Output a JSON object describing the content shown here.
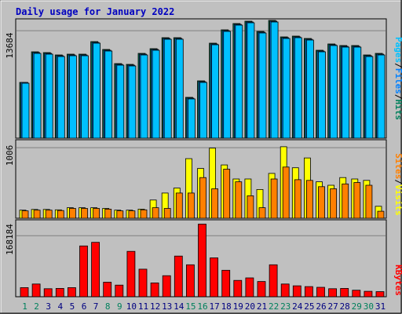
{
  "title": "Daily usage for January 2022",
  "colors": {
    "background": "#c0c0c0",
    "title": "#0000c0",
    "hits": "#00805c",
    "files": "#0080ff",
    "pages": "#00c0ff",
    "visits": "#ffff00",
    "sites": "#ff8000",
    "kbytes": "#ff0000",
    "weekend": "#00805c",
    "weekday": "#000080"
  },
  "labels": {
    "pages": "Pages",
    "files": "Files",
    "hits": "Hits",
    "sites": "Sites",
    "visits": "Visits",
    "kbytes": "KBytes",
    "separator": "/"
  },
  "chart_data": [
    {
      "type": "bar",
      "title": "Daily usage for January 2022",
      "x": [
        1,
        2,
        3,
        4,
        5,
        6,
        7,
        8,
        9,
        10,
        11,
        12,
        13,
        14,
        15,
        16,
        17,
        18,
        19,
        20,
        21,
        22,
        23,
        24,
        25,
        26,
        27,
        28,
        29,
        30,
        31
      ],
      "weekend_days": [
        1,
        2,
        8,
        9,
        15,
        16,
        22,
        23,
        29,
        30
      ],
      "ytick": 13684,
      "ylim": [
        0,
        15200
      ],
      "series": [
        {
          "name": "Hits",
          "values": [
            7100,
            11000,
            10900,
            10600,
            10700,
            10700,
            12300,
            11300,
            9500,
            9400,
            10800,
            11400,
            12800,
            12800,
            5200,
            7300,
            12100,
            13800,
            14600,
            14900,
            13600,
            15000,
            12900,
            13000,
            12700,
            11200,
            12000,
            11800,
            11800,
            10600,
            10800
          ]
        },
        {
          "name": "Files",
          "values": [
            7100,
            10900,
            10800,
            10500,
            10600,
            10600,
            12200,
            11200,
            9400,
            9300,
            10700,
            11300,
            12700,
            12700,
            5100,
            7200,
            12000,
            13700,
            14500,
            14800,
            13500,
            14900,
            12800,
            12900,
            12600,
            11100,
            11900,
            11700,
            11700,
            10500,
            10700
          ]
        },
        {
          "name": "Pages",
          "values": [
            7000,
            10800,
            10700,
            10400,
            10500,
            10500,
            12100,
            11100,
            9300,
            9200,
            10600,
            11200,
            12600,
            12600,
            5000,
            7100,
            11900,
            13600,
            14400,
            14700,
            13400,
            14800,
            12700,
            12800,
            12500,
            11000,
            11800,
            11600,
            11600,
            10400,
            10600
          ]
        }
      ]
    },
    {
      "type": "bar",
      "x": [
        1,
        2,
        3,
        4,
        5,
        6,
        7,
        8,
        9,
        10,
        11,
        12,
        13,
        14,
        15,
        16,
        17,
        18,
        19,
        20,
        21,
        22,
        23,
        24,
        25,
        26,
        27,
        28,
        29,
        30,
        31
      ],
      "ytick": 1006,
      "ylim": [
        0,
        1120
      ],
      "series": [
        {
          "name": "Visits",
          "values": [
            115,
            125,
            125,
            120,
            150,
            150,
            150,
            140,
            115,
            115,
            130,
            260,
            360,
            430,
            850,
            710,
            1000,
            760,
            560,
            560,
            410,
            640,
            1020,
            720,
            860,
            520,
            470,
            580,
            560,
            540,
            170
          ]
        },
        {
          "name": "Sites",
          "values": [
            105,
            115,
            115,
            110,
            140,
            140,
            140,
            130,
            105,
            105,
            120,
            150,
            140,
            360,
            360,
            580,
            420,
            700,
            520,
            320,
            150,
            560,
            730,
            550,
            540,
            450,
            420,
            490,
            510,
            470,
            100
          ]
        }
      ]
    },
    {
      "type": "bar",
      "x": [
        1,
        2,
        3,
        4,
        5,
        6,
        7,
        8,
        9,
        10,
        11,
        12,
        13,
        14,
        15,
        16,
        17,
        18,
        19,
        20,
        21,
        22,
        23,
        24,
        25,
        26,
        27,
        28,
        29,
        30,
        31
      ],
      "ytick": 168184,
      "ylim": [
        0,
        212000
      ],
      "series": [
        {
          "name": "KBytes",
          "values": [
            25000,
            35000,
            22000,
            23000,
            25000,
            140000,
            150000,
            40000,
            32000,
            125000,
            76000,
            38000,
            58000,
            112000,
            88000,
            200000,
            107000,
            73000,
            45000,
            52000,
            42000,
            88000,
            35000,
            30000,
            28000,
            26000,
            22000,
            23000,
            18000,
            15000,
            14000
          ]
        }
      ]
    }
  ]
}
